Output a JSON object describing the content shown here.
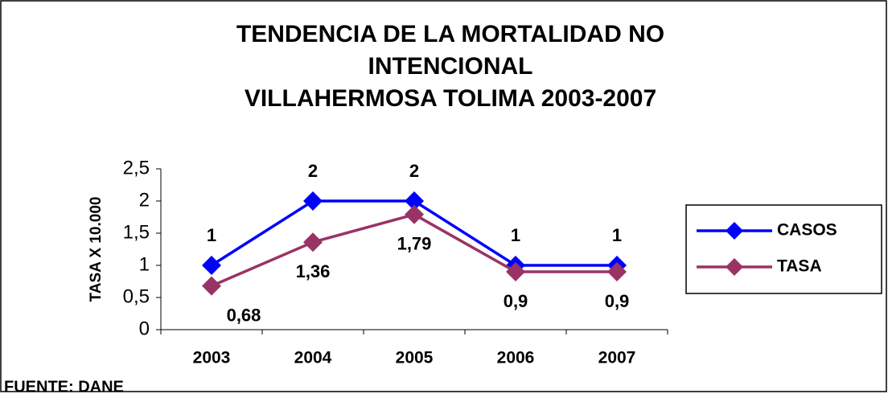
{
  "chart_data": {
    "type": "line",
    "title": [
      "TENDENCIA DE LA MORTALIDAD NO",
      "INTENCIONAL",
      "VILLAHERMOSA TOLIMA 2003-2007"
    ],
    "y_label": "TASA X 10.000",
    "source": "FUENTE: DANE",
    "categories": [
      "2003",
      "2004",
      "2005",
      "2006",
      "2007"
    ],
    "series": [
      {
        "name": "CASOS",
        "color": "#0000ff",
        "values": [
          1,
          2,
          2,
          1,
          1
        ]
      },
      {
        "name": "TASA",
        "color": "#993366",
        "values": [
          0.68,
          1.36,
          1.79,
          0.9,
          0.9
        ],
        "value_labels": [
          "0,68",
          "1,36",
          "1,79",
          "0,9",
          "0,9"
        ]
      }
    ],
    "ylim": [
      0,
      2.5
    ],
    "yticks": [
      0,
      {
        "value": 0.5,
        "label": "0,5"
      },
      1,
      {
        "value": 1.5,
        "label": "1,5"
      },
      2,
      {
        "value": 2.5,
        "label": "2,5"
      }
    ],
    "grid": false,
    "legend": "right"
  }
}
